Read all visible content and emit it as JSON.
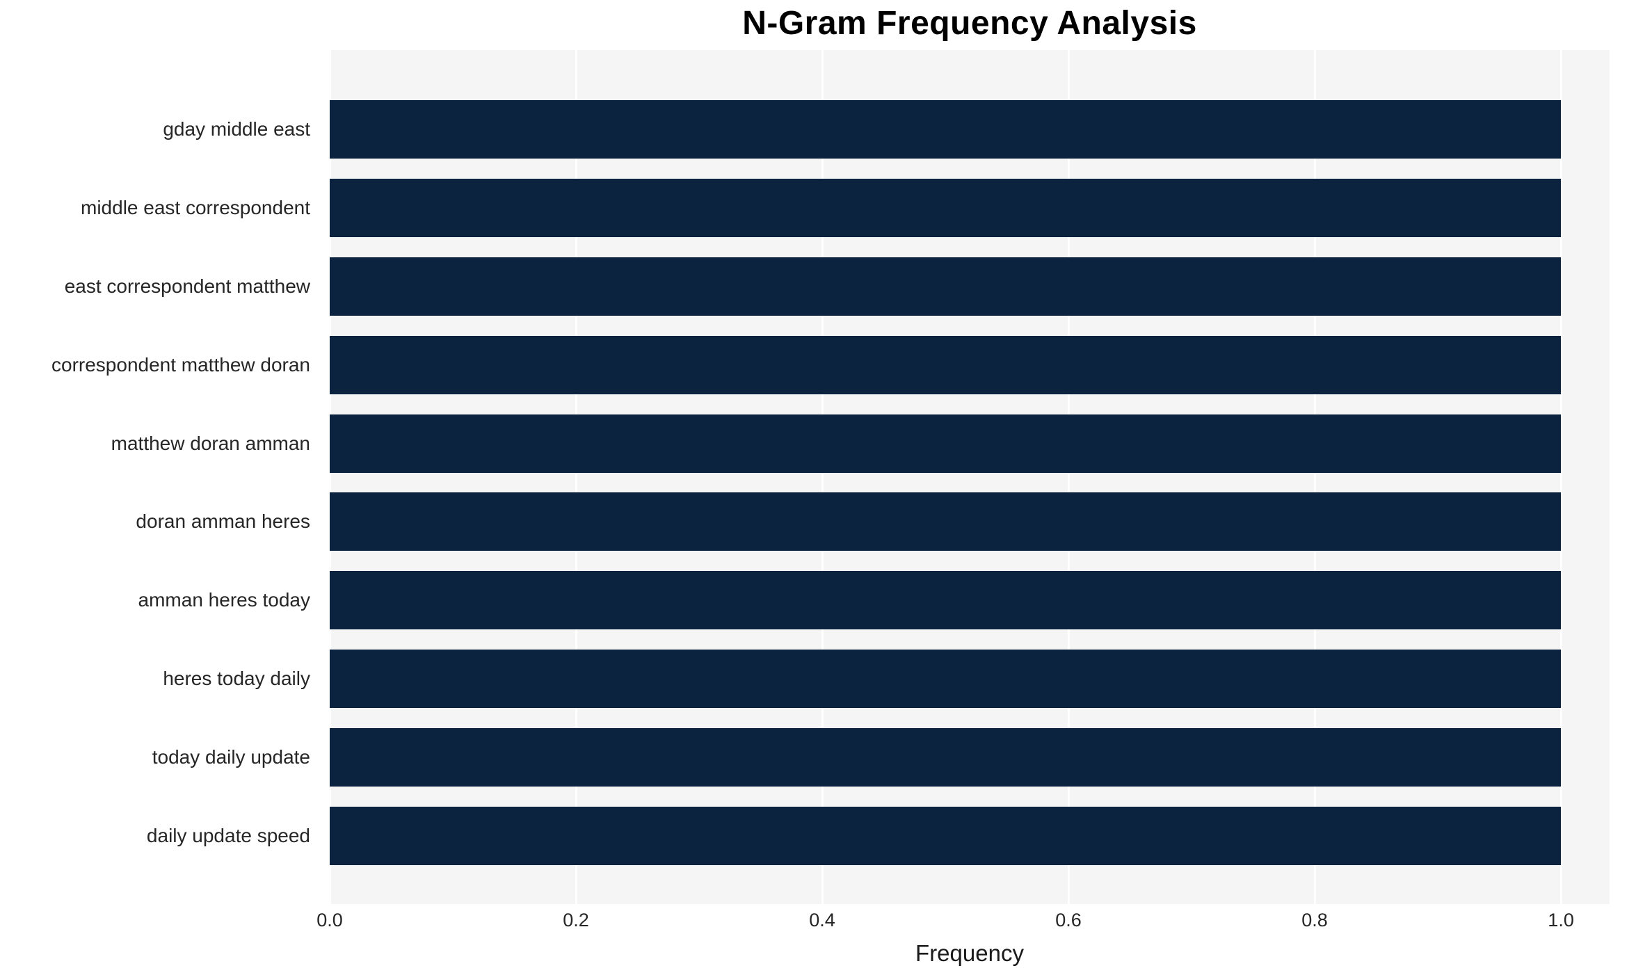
{
  "chart_data": {
    "type": "bar",
    "orientation": "horizontal",
    "title": "N-Gram Frequency Analysis",
    "xlabel": "Frequency",
    "ylabel": "",
    "categories": [
      "gday middle east",
      "middle east correspondent",
      "east correspondent matthew",
      "correspondent matthew doran",
      "matthew doran amman",
      "doran amman heres",
      "amman heres today",
      "heres today daily",
      "today daily update",
      "daily update speed"
    ],
    "values": [
      1.0,
      1.0,
      1.0,
      1.0,
      1.0,
      1.0,
      1.0,
      1.0,
      1.0,
      1.0
    ],
    "xlim": [
      0.0,
      1.0
    ],
    "x_ticks": [
      "0.0",
      "0.2",
      "0.4",
      "0.6",
      "0.8",
      "1.0"
    ],
    "grid": true,
    "legend": false,
    "colors": {
      "bar": "#0c2340",
      "plot_background": "#f5f5f5",
      "gridline": "#ffffff",
      "text": "#262626",
      "title": "#000000"
    }
  }
}
